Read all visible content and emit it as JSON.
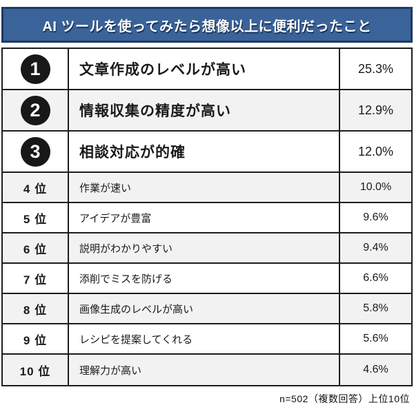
{
  "header": {
    "title": "AI ツールを使ってみたら想像以上に便利だったこと"
  },
  "footer": {
    "note": "n=502（複数回答）上位10位"
  },
  "colors": {
    "banner_bg": "#3a6399",
    "banner_border": "#1f3864",
    "banner_text": "#ffffff",
    "table_border": "#1c1c1c",
    "row_alt_bg": "#f2f2f2",
    "badge_bg": "#181818",
    "badge_text": "#ffffff"
  },
  "chart_data": {
    "type": "table",
    "title": "AI ツールを使ってみたら想像以上に便利だったこと",
    "note": "n=502（複数回答）上位10位",
    "columns": [
      "rank",
      "item",
      "percent"
    ],
    "categories": [
      "文章作成のレベルが高い",
      "情報収集の精度が高い",
      "相談対応が的確",
      "作業が速い",
      "アイデアが豊富",
      "説明がわかりやすい",
      "添削でミスを防げる",
      "画像生成のレベルが高い",
      "レシピを提案してくれる",
      "理解力が高い"
    ],
    "values": [
      25.3,
      12.9,
      12.0,
      10.0,
      9.6,
      9.4,
      6.6,
      5.8,
      5.6,
      4.6
    ],
    "rows": [
      {
        "rank": "1",
        "rank_label": "1 位",
        "item": "文章作成のレベルが高い",
        "percent": "25.3%",
        "value": 25.3
      },
      {
        "rank": "2",
        "rank_label": "2 位",
        "item": "情報収集の精度が高い",
        "percent": "12.9%",
        "value": 12.9
      },
      {
        "rank": "3",
        "rank_label": "3 位",
        "item": "相談対応が的確",
        "percent": "12.0%",
        "value": 12.0
      },
      {
        "rank": "4",
        "rank_label": "4 位",
        "item": "作業が速い",
        "percent": "10.0%",
        "value": 10.0
      },
      {
        "rank": "5",
        "rank_label": "5 位",
        "item": "アイデアが豊富",
        "percent": "9.6%",
        "value": 9.6
      },
      {
        "rank": "6",
        "rank_label": "6 位",
        "item": "説明がわかりやすい",
        "percent": "9.4%",
        "value": 9.4
      },
      {
        "rank": "7",
        "rank_label": "7 位",
        "item": "添削でミスを防げる",
        "percent": "6.6%",
        "value": 6.6
      },
      {
        "rank": "8",
        "rank_label": "8 位",
        "item": "画像生成のレベルが高い",
        "percent": "5.8%",
        "value": 5.8
      },
      {
        "rank": "9",
        "rank_label": "9 位",
        "item": "レシピを提案してくれる",
        "percent": "5.6%",
        "value": 5.6
      },
      {
        "rank": "10",
        "rank_label": "10 位",
        "item": "理解力が高い",
        "percent": "4.6%",
        "value": 4.6
      }
    ]
  }
}
